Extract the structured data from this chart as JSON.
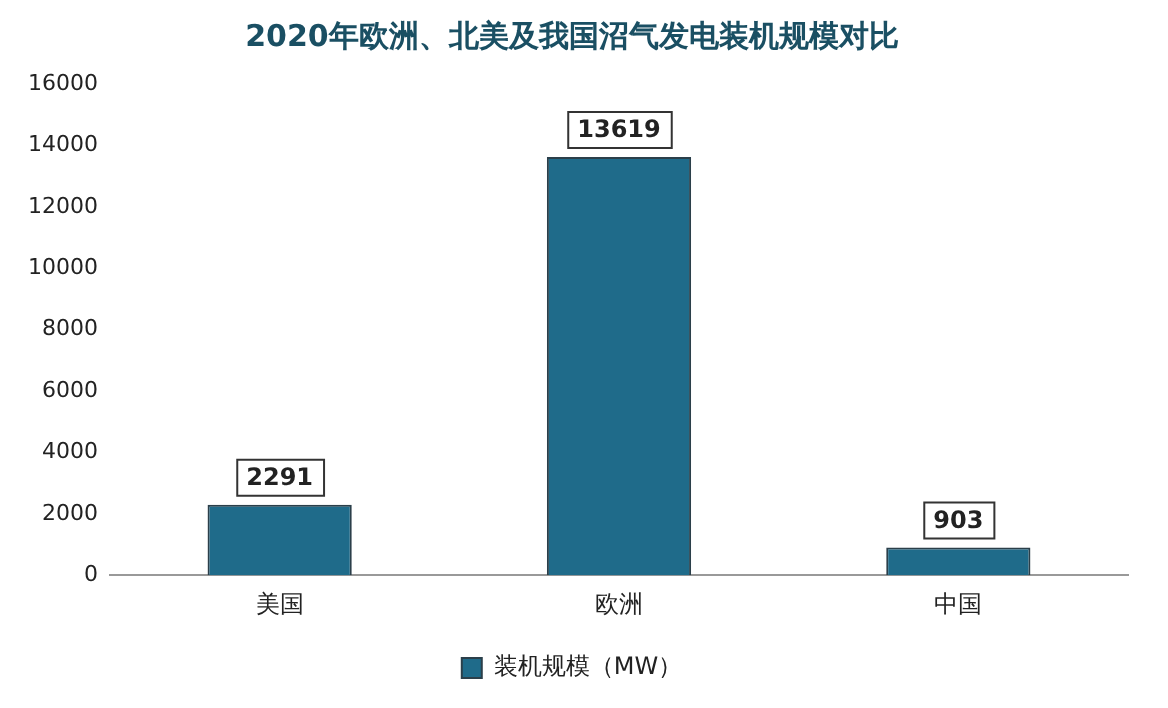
{
  "chart_data": {
    "type": "bar",
    "title": "2020年欧洲、北美及我国沼气发电装机规模对比",
    "categories": [
      "美国",
      "欧洲",
      "中国"
    ],
    "series": [
      {
        "name": "装机规模（MW）",
        "color": "#1f6b8a",
        "values": [
          2291,
          13619,
          903
        ]
      }
    ],
    "ylim": [
      0,
      16000
    ],
    "yticks": [
      0,
      2000,
      4000,
      6000,
      8000,
      10000,
      12000,
      14000,
      16000
    ],
    "grid": false,
    "legend": "bottom",
    "data_labels": true
  }
}
